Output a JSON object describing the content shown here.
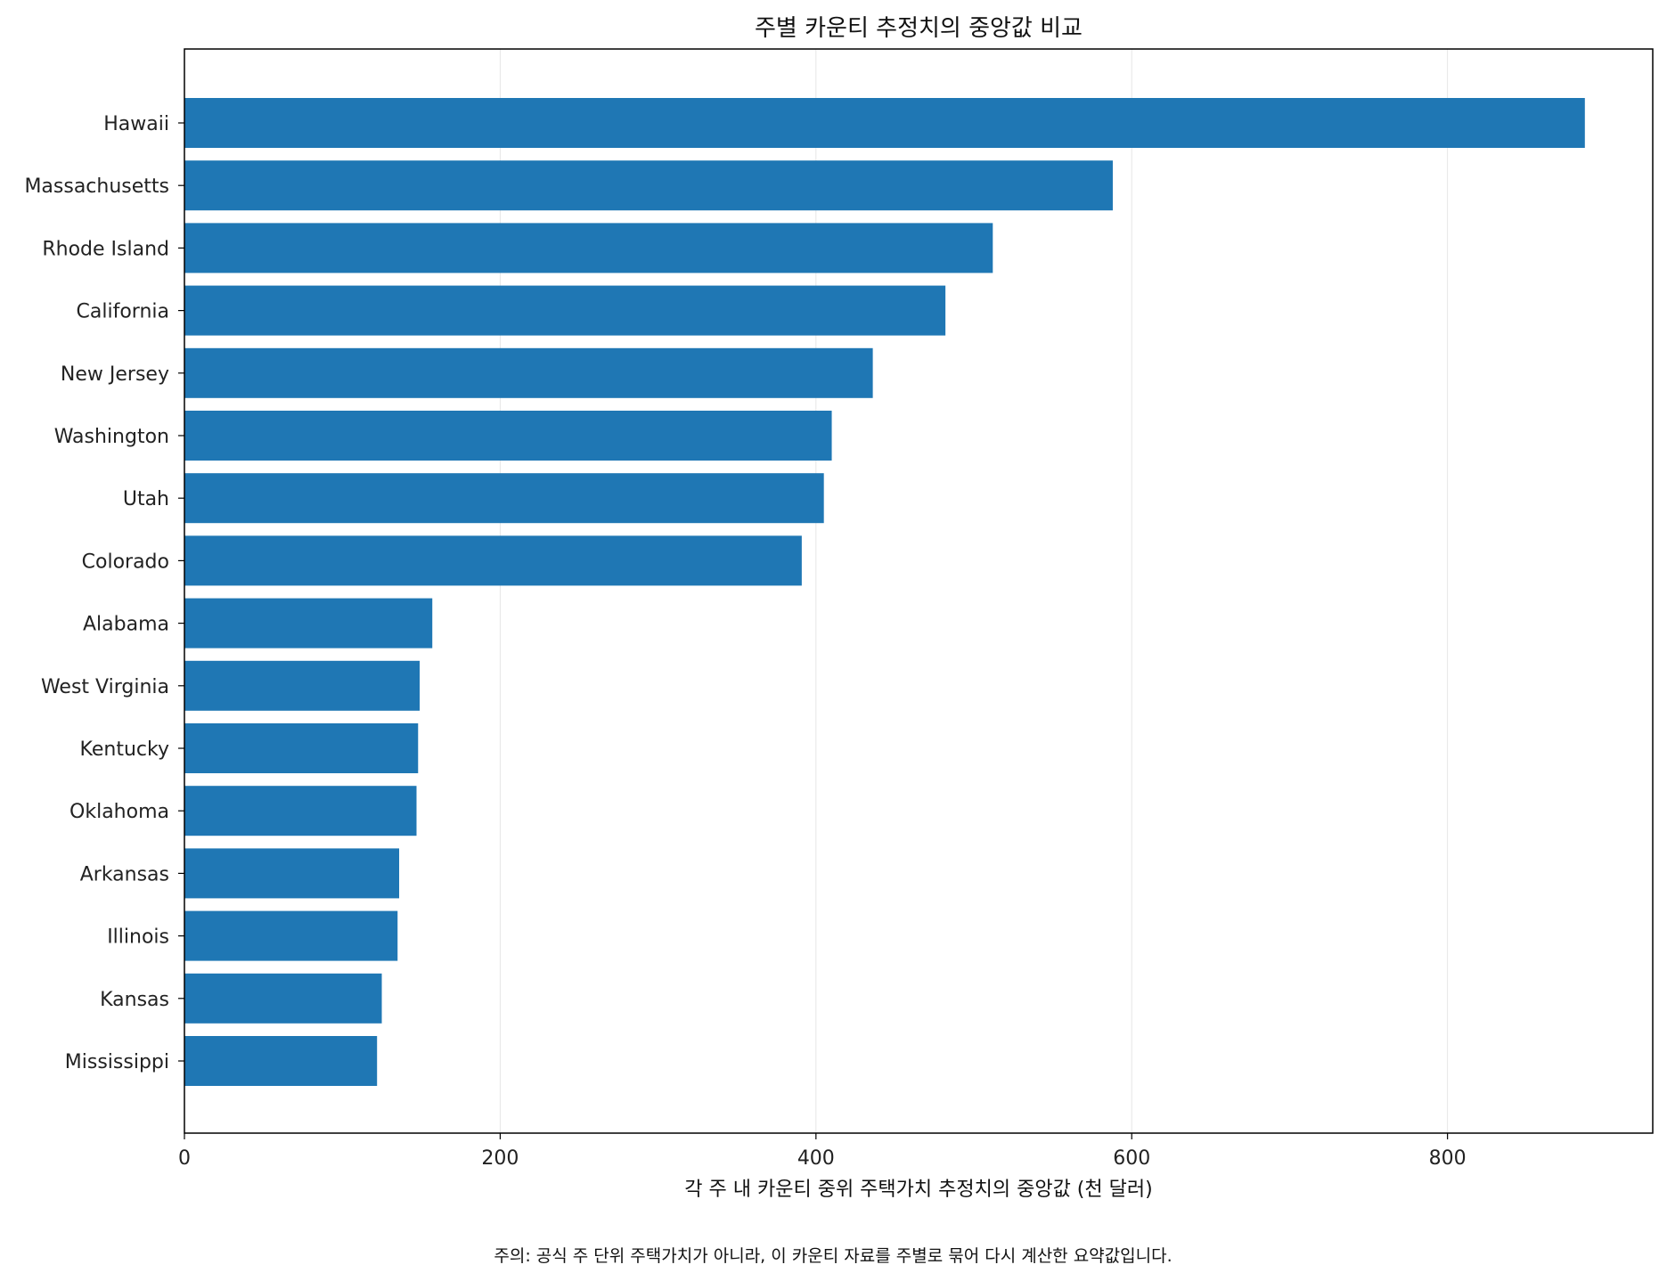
{
  "chart_data": {
    "type": "bar",
    "orientation": "horizontal",
    "title": "주별 카운티 추정치의 중앙값 비교",
    "xlabel": "각 주 내 카운티 중위 주택가치 추정치의 중앙값 (천 달러)",
    "ylabel": "",
    "note": "주의: 공식 주 단위 주택가치가 아니라, 이 카운티 자료를 주별로 묶어 다시 계산한 요약값입니다.",
    "categories": [
      "Hawaii",
      "Massachusetts",
      "Rhode Island",
      "California",
      "New Jersey",
      "Washington",
      "Utah",
      "Colorado",
      "Alabama",
      "West Virginia",
      "Kentucky",
      "Oklahoma",
      "Arkansas",
      "Illinois",
      "Kansas",
      "Mississippi"
    ],
    "values": [
      887,
      588,
      512,
      482,
      436,
      410,
      405,
      391,
      157,
      149,
      148,
      147,
      136,
      135,
      125,
      122
    ],
    "xlim": [
      0,
      930
    ],
    "xticks": [
      0,
      200,
      400,
      600,
      800
    ],
    "xtick_labels": [
      "0",
      "200",
      "400",
      "600",
      "800"
    ],
    "grid": "vertical",
    "bar_color": "#1f77b4"
  }
}
